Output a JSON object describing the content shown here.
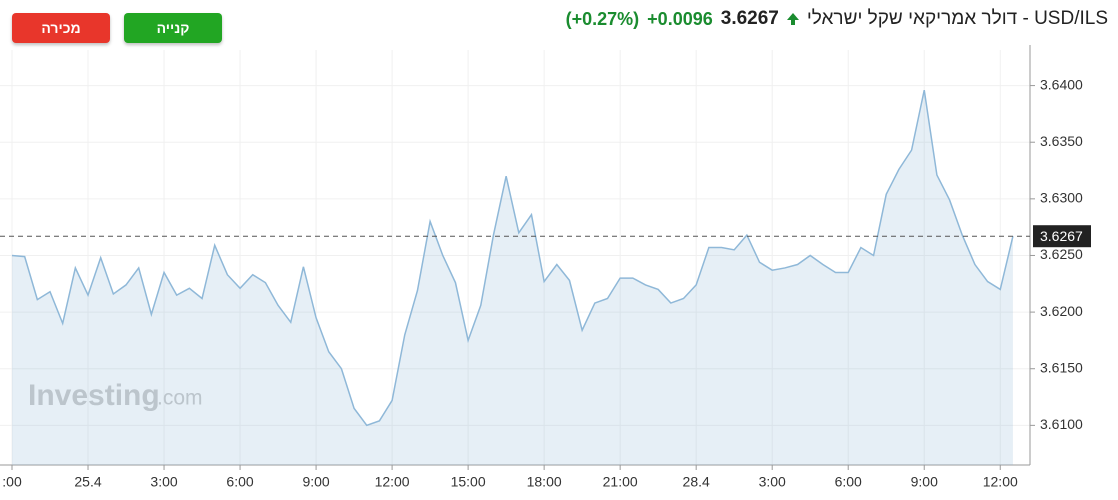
{
  "header": {
    "sell": "מכירה",
    "buy": "קנייה",
    "change": "+0.0096",
    "change_percent": "(+0.27%)"
  },
  "watermark": {
    "brand": "Investing",
    "suffix": ".com"
  },
  "chart_data": {
    "type": "area",
    "title": "USD/ILS - דולר אמריקאי שקל ישראלי",
    "categories": [
      ":00",
      null,
      null,
      null,
      null,
      null,
      "25.4",
      null,
      null,
      null,
      null,
      null,
      "3:00",
      null,
      null,
      null,
      null,
      null,
      "6:00",
      null,
      null,
      null,
      null,
      null,
      "9:00",
      null,
      null,
      null,
      null,
      null,
      "12:00",
      null,
      null,
      null,
      null,
      null,
      "15:00",
      null,
      null,
      null,
      null,
      null,
      "18:00",
      null,
      null,
      null,
      null,
      null,
      "21:00",
      null,
      null,
      null,
      null,
      null,
      "28.4",
      null,
      null,
      null,
      null,
      null,
      "3:00",
      null,
      null,
      null,
      null,
      null,
      "6:00",
      null,
      null,
      null,
      null,
      null,
      "9:00",
      null,
      null,
      null,
      null,
      null,
      "12:00",
      null
    ],
    "values": [
      3.625,
      3.6249,
      3.6211,
      3.6218,
      3.619,
      3.6239,
      3.6215,
      3.6248,
      3.6216,
      3.6224,
      3.6239,
      3.6198,
      3.6235,
      3.6215,
      3.6221,
      3.6212,
      3.6259,
      3.6233,
      3.6221,
      3.6233,
      3.6226,
      3.6206,
      3.6191,
      3.624,
      3.6195,
      3.6165,
      3.615,
      3.6115,
      3.61,
      3.6104,
      3.6122,
      3.618,
      3.6219,
      3.628,
      3.625,
      3.6226,
      3.6175,
      3.6206,
      3.6268,
      3.632,
      3.627,
      3.6286,
      3.6227,
      3.6242,
      3.6228,
      3.6184,
      3.6208,
      3.6212,
      3.623,
      3.623,
      3.6224,
      3.622,
      3.6208,
      3.6212,
      3.6224,
      3.6257,
      3.6257,
      3.6255,
      3.6268,
      3.6244,
      3.6237,
      3.6239,
      3.6242,
      3.625,
      3.6242,
      3.6235,
      3.6235,
      3.6257,
      3.625,
      3.6304,
      3.6326,
      3.6343,
      3.6396,
      3.6321,
      3.6299,
      3.6268,
      3.6242,
      3.6227,
      3.622,
      3.6267
    ],
    "color": "#8fb8d8",
    "last_price": 3.6267,
    "ylim": [
      3.6065,
      3.6427
    ],
    "yticks": [
      {
        "value": 3.61,
        "label": "3.6100"
      },
      {
        "value": 3.615,
        "label": "3.6150"
      },
      {
        "value": 3.62,
        "label": "3.6200"
      },
      {
        "value": 3.625,
        "label": "3.6250"
      },
      {
        "value": 3.63,
        "label": "3.6300"
      },
      {
        "value": 3.635,
        "label": "3.6350"
      },
      {
        "value": 3.64,
        "label": "3.6400"
      }
    ],
    "grid": true
  }
}
